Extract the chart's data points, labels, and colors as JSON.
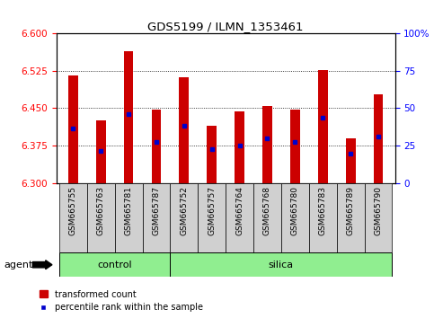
{
  "title": "GDS5199 / ILMN_1353461",
  "samples": [
    "GSM665755",
    "GSM665763",
    "GSM665781",
    "GSM665787",
    "GSM665752",
    "GSM665757",
    "GSM665764",
    "GSM665768",
    "GSM665780",
    "GSM665783",
    "GSM665789",
    "GSM665790"
  ],
  "bar_tops": [
    6.515,
    6.425,
    6.565,
    6.447,
    6.512,
    6.415,
    6.443,
    6.455,
    6.447,
    6.527,
    6.39,
    6.478
  ],
  "bar_bottom": 6.3,
  "blue_dot_values": [
    6.41,
    6.365,
    6.438,
    6.382,
    6.415,
    6.368,
    6.375,
    6.39,
    6.382,
    6.43,
    6.358,
    6.393
  ],
  "ylim": [
    6.3,
    6.6
  ],
  "yticks_left": [
    6.3,
    6.375,
    6.45,
    6.525,
    6.6
  ],
  "yticks_right_vals": [
    0,
    25,
    50,
    75,
    100
  ],
  "yticks_right_labels": [
    "0",
    "25",
    "50",
    "75",
    "100%"
  ],
  "bar_color": "#cc0000",
  "dot_color": "#0000cc",
  "grid_yticks": [
    6.375,
    6.45,
    6.525
  ],
  "n_control": 4,
  "n_silica": 8,
  "agent_label": "agent",
  "control_label": "control",
  "silica_label": "silica",
  "legend_bar_label": "transformed count",
  "legend_dot_label": "percentile rank within the sample",
  "bar_width": 0.35,
  "light_green": "#90EE90",
  "light_gray": "#d0d0d0"
}
